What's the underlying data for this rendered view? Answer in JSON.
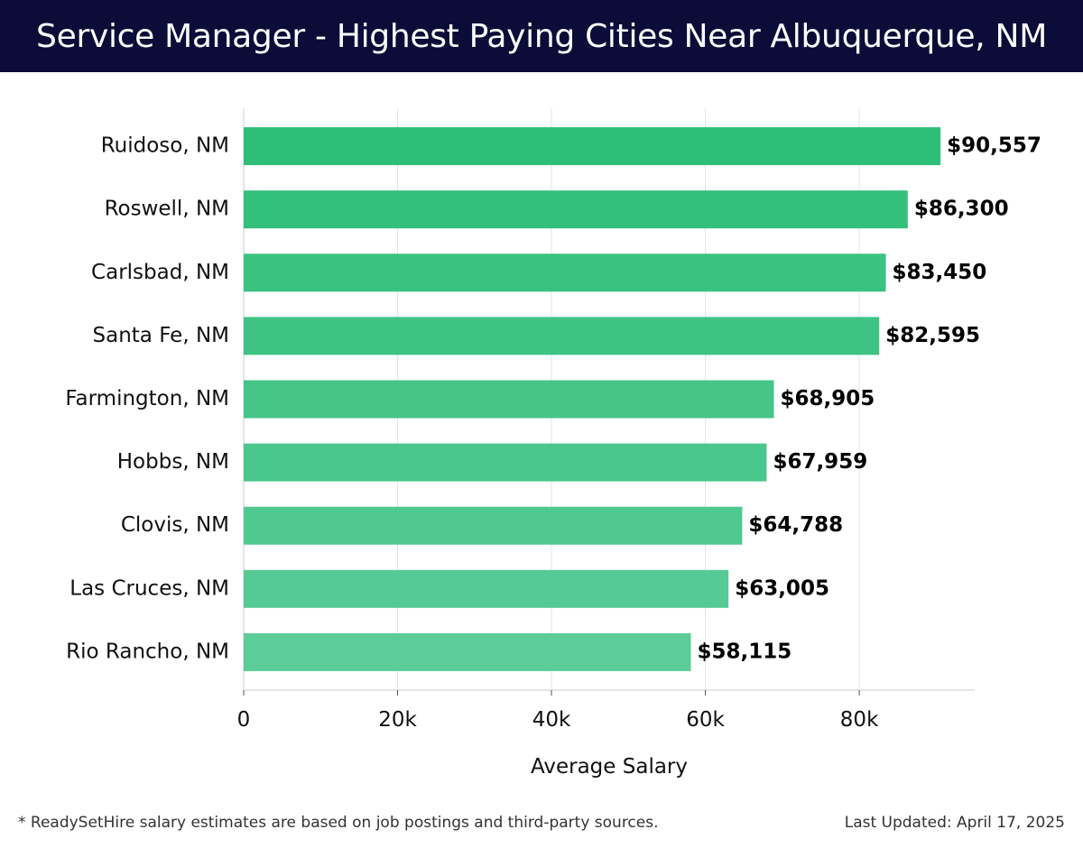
{
  "header": {
    "title": "Service Manager - Highest Paying Cities Near Albuquerque, NM"
  },
  "chart_data": {
    "type": "bar",
    "orientation": "horizontal",
    "title": "Service Manager - Highest Paying Cities Near Albuquerque, NM",
    "xlabel": "Average Salary",
    "ylabel": "",
    "categories": [
      "Ruidoso, NM",
      "Roswell, NM",
      "Carlsbad, NM",
      "Santa Fe, NM",
      "Farmington, NM",
      "Hobbs, NM",
      "Clovis, NM",
      "Las Cruces, NM",
      "Rio Rancho, NM"
    ],
    "values": [
      90557,
      86300,
      83450,
      82595,
      68905,
      67959,
      64788,
      63005,
      58115
    ],
    "value_labels": [
      "$90,557",
      "$86,300",
      "$83,450",
      "$82,595",
      "$68,905",
      "$67,959",
      "$64,788",
      "$63,005",
      "$58,115"
    ],
    "xticks": [
      0,
      20000,
      40000,
      60000,
      80000
    ],
    "xtick_labels": [
      "0",
      "20k",
      "40k",
      "60k",
      "80k"
    ],
    "xlim": [
      0,
      95000
    ],
    "grid": "vertical",
    "legend": "none",
    "colors": {
      "bar_top": "#2dbe78",
      "bar_bottom": "#5ccc98",
      "grid": "#e4e4e4",
      "axis": "#cccccc",
      "header_bg": "#0b0c38"
    }
  },
  "footer": {
    "note": "* ReadySetHire salary estimates are based on job postings and third-party sources.",
    "updated": "Last Updated: April 17, 2025"
  }
}
